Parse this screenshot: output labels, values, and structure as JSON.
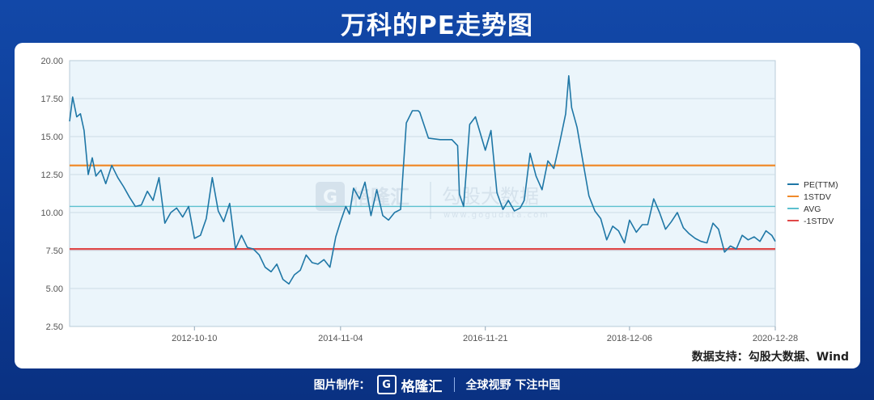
{
  "header": {
    "title": "万科的PE走势图"
  },
  "source_note": "数据支持：勾股大数据、Wind",
  "watermark": {
    "brand": "格隆汇",
    "product": "勾股大数据",
    "url": "www.gogudata.com"
  },
  "footer": {
    "made_by_label": "图片制作：",
    "logo_letter": "G",
    "brand_name": "格隆汇",
    "slogan": "全球视野 下注中国"
  },
  "colors": {
    "pe": "#1f77a6",
    "stdv_plus": "#f08a2a",
    "avg": "#5cc0cf",
    "stdv_minus": "#e04848",
    "plot_bg": "#ebf5fb",
    "grid": "#ccdbe6"
  },
  "chart_data": {
    "type": "line",
    "title": "",
    "xlabel": "",
    "ylabel": "",
    "ylim": [
      2.5,
      20.0
    ],
    "yticks": [
      "2.50",
      "5.00",
      "7.50",
      "10.00",
      "12.50",
      "15.00",
      "17.50",
      "20.00"
    ],
    "xticks": [
      "2012-10-10",
      "2014-11-04",
      "2016-11-21",
      "2018-12-06",
      "2020-12-28"
    ],
    "xlim": [
      "2011-01-04",
      "2020-12-28"
    ],
    "grid": true,
    "legend_position": "right",
    "series": [
      {
        "name": "PE(TTM)",
        "x": [
          "2011-01-04",
          "2011-01-20",
          "2011-02-10",
          "2011-03-01",
          "2011-03-20",
          "2011-04-10",
          "2011-05-01",
          "2011-05-20",
          "2011-06-15",
          "2011-07-10",
          "2011-08-10",
          "2011-09-10",
          "2011-10-10",
          "2011-11-10",
          "2011-12-10",
          "2012-01-10",
          "2012-02-10",
          "2012-03-10",
          "2012-04-10",
          "2012-05-10",
          "2012-06-10",
          "2012-07-10",
          "2012-08-10",
          "2012-09-10",
          "2012-10-10",
          "2012-11-10",
          "2012-12-10",
          "2013-01-10",
          "2013-02-10",
          "2013-03-10",
          "2013-04-10",
          "2013-05-10",
          "2013-06-10",
          "2013-07-10",
          "2013-08-10",
          "2013-09-10",
          "2013-10-10",
          "2013-11-10",
          "2013-12-10",
          "2014-01-10",
          "2014-02-10",
          "2014-03-10",
          "2014-04-10",
          "2014-05-10",
          "2014-06-10",
          "2014-07-10",
          "2014-08-10",
          "2014-09-10",
          "2014-10-10",
          "2014-11-04",
          "2014-12-01",
          "2014-12-20",
          "2015-01-10",
          "2015-02-10",
          "2015-03-10",
          "2015-04-10",
          "2015-05-10",
          "2015-06-10",
          "2015-07-10",
          "2015-08-10",
          "2015-09-10",
          "2015-10-10",
          "2015-11-10",
          "2015-12-10",
          "2015-12-18",
          "2016-02-01",
          "2016-04-01",
          "2016-06-01",
          "2016-07-01",
          "2016-07-10",
          "2016-08-01",
          "2016-08-15",
          "2016-09-01",
          "2016-10-01",
          "2016-11-21",
          "2016-12-20",
          "2017-01-20",
          "2017-02-20",
          "2017-03-20",
          "2017-04-20",
          "2017-05-20",
          "2017-06-10",
          "2017-07-10",
          "2017-08-10",
          "2017-09-10",
          "2017-10-10",
          "2017-11-10",
          "2017-12-10",
          "2018-01-10",
          "2018-01-26",
          "2018-02-10",
          "2018-03-10",
          "2018-04-10",
          "2018-05-10",
          "2018-06-10",
          "2018-07-10",
          "2018-08-10",
          "2018-09-10",
          "2018-10-10",
          "2018-11-10",
          "2018-12-06",
          "2019-01-10",
          "2019-02-10",
          "2019-03-10",
          "2019-04-10",
          "2019-05-10",
          "2019-06-10",
          "2019-07-10",
          "2019-08-10",
          "2019-09-10",
          "2019-10-10",
          "2019-11-10",
          "2019-12-10",
          "2020-01-10",
          "2020-02-10",
          "2020-03-10",
          "2020-04-10",
          "2020-05-10",
          "2020-06-10",
          "2020-07-10",
          "2020-08-10",
          "2020-09-10",
          "2020-10-10",
          "2020-11-10",
          "2020-12-10",
          "2020-12-28"
        ],
        "y": [
          16.0,
          17.6,
          16.3,
          16.5,
          15.4,
          12.5,
          13.6,
          12.4,
          12.8,
          11.9,
          13.1,
          12.3,
          11.7,
          11.0,
          10.4,
          10.5,
          11.4,
          10.8,
          12.3,
          9.3,
          10.0,
          10.3,
          9.7,
          10.4,
          8.3,
          8.5,
          9.6,
          12.3,
          10.1,
          9.4,
          10.6,
          7.6,
          8.5,
          7.7,
          7.6,
          7.2,
          6.4,
          6.1,
          6.6,
          5.6,
          5.3,
          5.9,
          6.2,
          7.2,
          6.7,
          6.6,
          6.9,
          6.4,
          8.4,
          9.4,
          10.4,
          9.9,
          11.6,
          10.9,
          12.0,
          9.8,
          11.5,
          9.8,
          9.5,
          10.0,
          10.2,
          15.9,
          16.7,
          16.7,
          16.6,
          14.9,
          14.8,
          14.8,
          14.4,
          11.2,
          10.4,
          12.8,
          15.8,
          16.3,
          14.1,
          15.4,
          11.3,
          10.2,
          10.8,
          10.1,
          10.3,
          10.8,
          13.9,
          12.4,
          11.5,
          13.4,
          12.9,
          14.6,
          16.5,
          19.0,
          16.9,
          15.6,
          13.3,
          11.1,
          10.1,
          9.6,
          8.2,
          9.1,
          8.8,
          8.0,
          9.5,
          8.7,
          9.2,
          9.2,
          10.9,
          10.0,
          8.9,
          9.4,
          10.0,
          9.0,
          8.6,
          8.3,
          8.1,
          8.0,
          9.3,
          8.9,
          7.4,
          7.8,
          7.6,
          8.5,
          8.2,
          8.4,
          8.1,
          8.8,
          8.5,
          8.1
        ]
      },
      {
        "name": "1STDV",
        "value": 13.1
      },
      {
        "name": "AVG",
        "value": 10.4
      },
      {
        "name": "-1STDV",
        "value": 7.6
      }
    ]
  }
}
